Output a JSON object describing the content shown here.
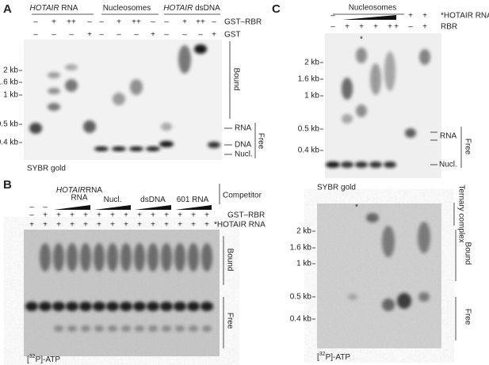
{
  "panel_a": {
    "label": "A",
    "headers": [
      {
        "italic": "HOTAIR",
        "rest": " RNA"
      },
      {
        "text": "Nucleosomes"
      },
      {
        "italic": "HOTAIR",
        "rest": " dsDNA"
      }
    ],
    "rows": [
      {
        "label": "GST–RBR",
        "signs": [
          "–",
          "+",
          "++",
          "–",
          "–",
          "+",
          "++",
          "–",
          "–",
          "+",
          "++",
          "–"
        ]
      },
      {
        "label": "GST",
        "signs": [
          "–",
          "–",
          "–",
          "+",
          "–",
          "–",
          "–",
          "+",
          "–",
          "–",
          "–",
          "+"
        ]
      }
    ],
    "size_markers": [
      "2 kb",
      "1.6 kb",
      "1 kb",
      "0.5 kb",
      "0.4 kb"
    ],
    "bound": "Bound",
    "free": "Free",
    "species": [
      "RNA",
      "DNA",
      "Nucl."
    ],
    "stain": "SYBR gold"
  },
  "panel_b": {
    "label": "B",
    "competitors": [
      {
        "italic": "HOTAIR",
        "rest": "RNA"
      },
      {
        "text": "Nucl."
      },
      {
        "text": "dsDNA"
      },
      {
        "text": "601 RNA"
      }
    ],
    "competitor_label": "Competitor",
    "rows": [
      {
        "label": "GST–RBR",
        "signs": [
          "–",
          "+",
          "+",
          "+",
          "+",
          "+",
          "+",
          "+",
          "+",
          "+",
          "+",
          "+",
          "+",
          "+"
        ]
      },
      {
        "label": "*HOTAIR RNA",
        "signs": [
          "+",
          "+",
          "+",
          "+",
          "+",
          "+",
          "+",
          "+",
          "+",
          "+",
          "+",
          "+",
          "+",
          "+"
        ]
      }
    ],
    "competitor_signs": [
      "–",
      "–"
    ],
    "bound": "Bound",
    "free": "Free",
    "stain": {
      "pre": "[",
      "sup": "32",
      "post": "P]-ATP"
    }
  },
  "panel_c": {
    "label": "C",
    "header": "Nucleosomes",
    "rows": [
      {
        "label": "*HOTAIR RNA",
        "signs": [
          "–",
          "+",
          "+"
        ]
      },
      {
        "label": "RBR",
        "signs": [
          "–",
          "+",
          "+",
          "+",
          "+",
          "+",
          "–",
          "+"
        ]
      }
    ],
    "asterisk": "*",
    "size_markers": [
      "2 kb",
      "1.6 kb",
      "1 kb",
      "0.5 kb",
      "0.4 kb"
    ],
    "species": [
      "RNA",
      "Nucl."
    ],
    "free": "Free",
    "stain": "SYBR gold",
    "lower": {
      "asterisk": "*",
      "complex": "Ternary complex",
      "bound": "Bound",
      "free": "Free",
      "size_markers": [
        "2 kb",
        "1.6 kb",
        "1 kb",
        "0.5 kb",
        "0.4 kb"
      ],
      "stain": {
        "pre": "[",
        "sup": "32",
        "post": "P]-ATP"
      }
    }
  }
}
